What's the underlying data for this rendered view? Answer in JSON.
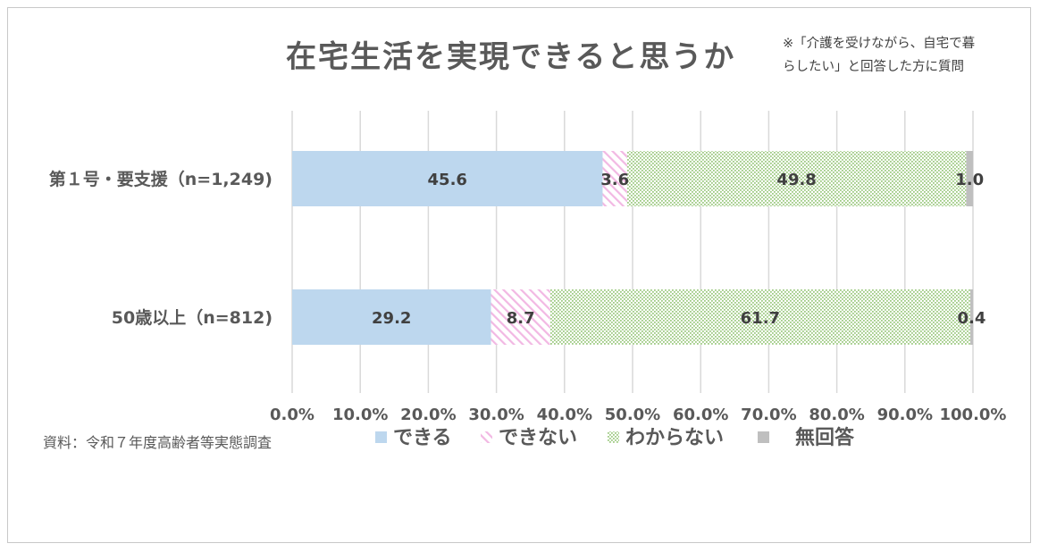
{
  "title": "在宅生活を実現できると思うか",
  "note_lines": [
    "※「介護を受けながら、自宅で暮",
    "らしたい」と回答した方に質問"
  ],
  "source": "資料：令和７年度高齢者等実態調査",
  "colors": {
    "dekiru": "#bdd7ee",
    "dekinai": "#f4c2e8",
    "wakaranai": "#a9d18e",
    "muka": "#bfbfbf",
    "grid": "#d9d9d9"
  },
  "chart_data": {
    "type": "bar",
    "orientation": "horizontal",
    "stacked": "percent",
    "categories": [
      "第１号・要支援（n=1,249)",
      "50歳以上（n=812)"
    ],
    "series": [
      {
        "name": "できる",
        "values": [
          45.6,
          29.2
        ],
        "fill": "solid"
      },
      {
        "name": "できない",
        "values": [
          3.6,
          8.7
        ],
        "fill": "diagonal"
      },
      {
        "name": "わからない",
        "values": [
          49.8,
          61.7
        ],
        "fill": "dots"
      },
      {
        "name": "無回答",
        "values": [
          1.0,
          0.4
        ],
        "fill": "solid"
      }
    ],
    "x_ticks": [
      "0.0%",
      "10.0%",
      "20.0%",
      "30.0%",
      "40.0%",
      "50.0%",
      "60.0%",
      "70.0%",
      "80.0%",
      "90.0%",
      "100.0%"
    ],
    "xlim": [
      0,
      100
    ],
    "grid": "vertical",
    "legend": "bottom"
  }
}
